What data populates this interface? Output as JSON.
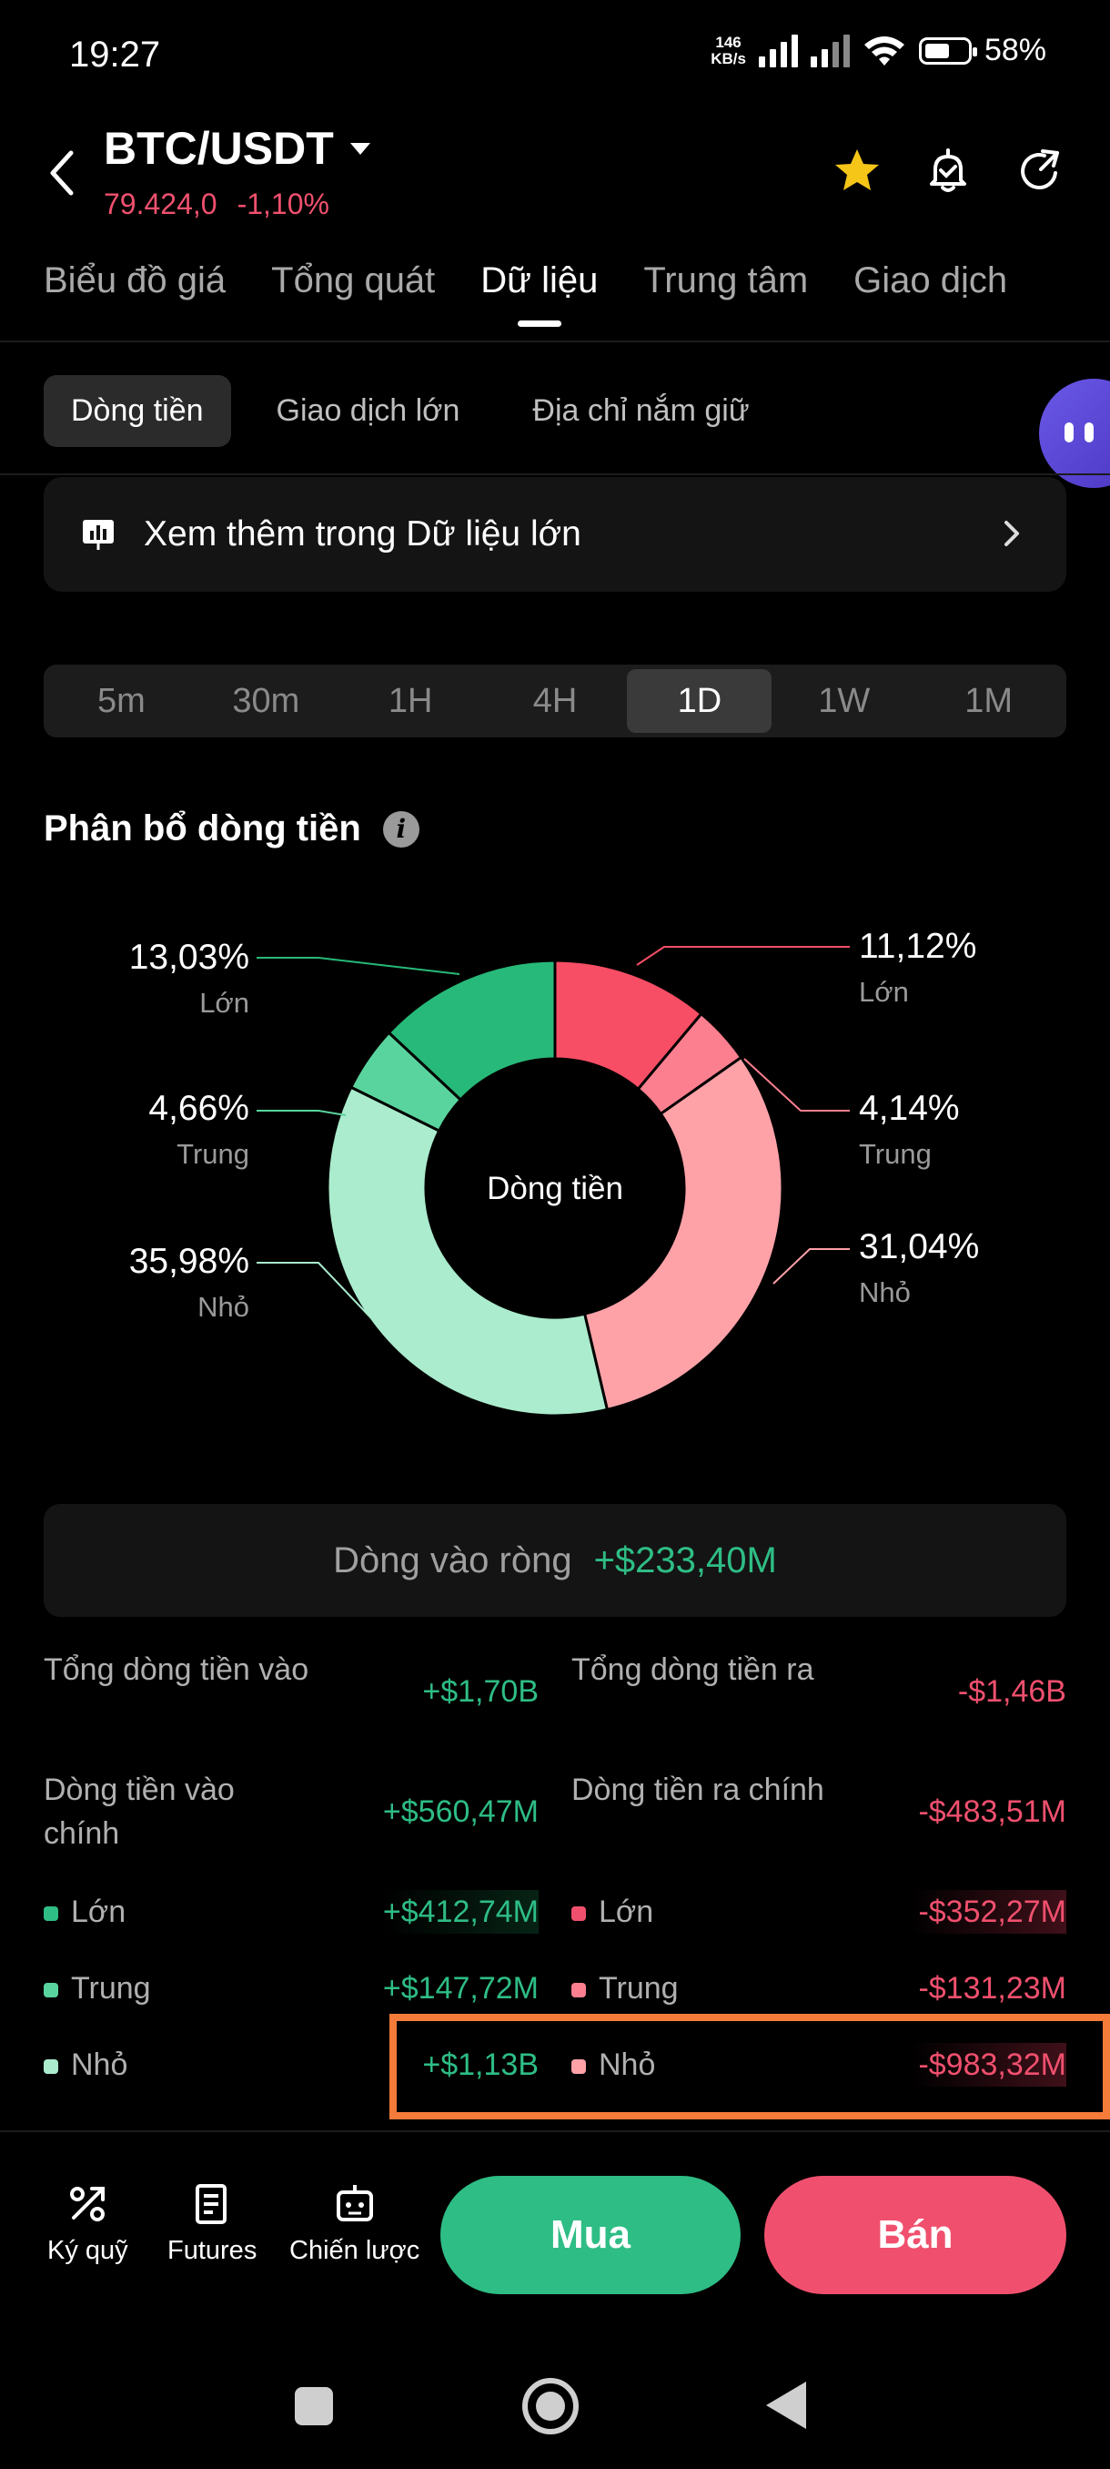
{
  "status_bar": {
    "time": "19:27",
    "net_speed": "146",
    "net_unit": "KB/s",
    "battery": "58%"
  },
  "header": {
    "pair": "BTC/USDT",
    "price": "79.424,0",
    "change": "-1,10%",
    "icons": [
      "back-icon",
      "star-icon",
      "alarm-icon",
      "share-icon"
    ]
  },
  "tabs": [
    "Biểu đồ giá",
    "Tổng quát",
    "Dữ liệu",
    "Trung tâm",
    "Giao dịch"
  ],
  "subtabs": [
    "Dòng tiền",
    "Giao dịch lớn",
    "Địa chỉ nắm giữ"
  ],
  "banner": {
    "text": "Xem thêm trong Dữ liệu lớn"
  },
  "ranges": [
    "5m",
    "30m",
    "1H",
    "4H",
    "1D",
    "1W",
    "1M"
  ],
  "section_title": "Phân bổ dòng tiền",
  "chart_data": {
    "type": "pie",
    "donut": true,
    "center_label": "Dòng tiền",
    "slices": [
      {
        "label": "Lớn",
        "value": 11.12,
        "display": "11,12%",
        "color": "#f74e65"
      },
      {
        "label": "Trung",
        "value": 4.14,
        "display": "4,14%",
        "color": "#fb7f8f"
      },
      {
        "label": "Nhỏ",
        "value": 31.04,
        "display": "31,04%",
        "color": "#fea2a8"
      },
      {
        "label": "Nhỏ",
        "value": 35.98,
        "display": "35,98%",
        "color": "#aaeccd"
      },
      {
        "label": "Trung",
        "value": 4.66,
        "display": "4,66%",
        "color": "#5ad49e"
      },
      {
        "label": "Lớn",
        "value": 13.03,
        "display": "13,03%",
        "color": "#27b979"
      }
    ]
  },
  "net": {
    "label": "Dòng vào ròng",
    "value": "+$233,40M"
  },
  "table": {
    "inflow_total_label": "Tổng dòng tiền vào",
    "inflow_total": "+$1,70B",
    "outflow_total_label": "Tổng dòng tiền ra",
    "outflow_total": "-$1,46B",
    "inflow_main_label": "Dòng tiền vào chính",
    "inflow_main": "+$560,47M",
    "outflow_main_label": "Dòng tiền ra chính",
    "outflow_main": "-$483,51M",
    "in_large_label": "Lớn",
    "in_large": "+$412,74M",
    "out_large_label": "Lớn",
    "out_large": "-$352,27M",
    "in_medium_label": "Trung",
    "in_medium": "+$147,72M",
    "out_medium_label": "Trung",
    "out_medium": "-$131,23M",
    "in_small_label": "Nhỏ",
    "in_small": "+$1,13B",
    "out_small_label": "Nhỏ",
    "out_small": "-$983,32M"
  },
  "bottom": {
    "margin": "Ký quỹ",
    "futures": "Futures",
    "strategy": "Chiến lược",
    "buy": "Mua",
    "sell": "Bán"
  },
  "colors": {
    "up": "#2ebd85",
    "down": "#f0506e",
    "highlight": "#f57b3a"
  }
}
